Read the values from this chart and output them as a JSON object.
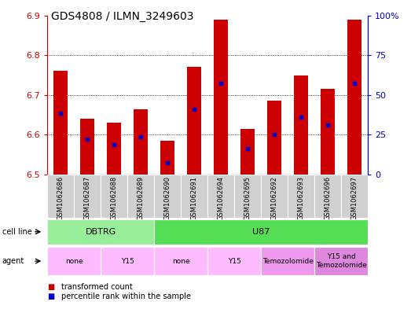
{
  "title": "GDS4808 / ILMN_3249603",
  "samples": [
    "GSM1062686",
    "GSM1062687",
    "GSM1062688",
    "GSM1062689",
    "GSM1062690",
    "GSM1062691",
    "GSM1062694",
    "GSM1062695",
    "GSM1062692",
    "GSM1062693",
    "GSM1062696",
    "GSM1062697"
  ],
  "bar_tops": [
    6.76,
    6.64,
    6.63,
    6.665,
    6.585,
    6.77,
    6.89,
    6.615,
    6.685,
    6.75,
    6.715,
    6.89
  ],
  "blue_positions": [
    6.655,
    6.59,
    6.575,
    6.595,
    6.53,
    6.665,
    6.73,
    6.565,
    6.6,
    6.645,
    6.625,
    6.73
  ],
  "bar_bottom": 6.5,
  "ylim": [
    6.5,
    6.9
  ],
  "yticks": [
    6.5,
    6.6,
    6.7,
    6.8,
    6.9
  ],
  "y2ticks": [
    0,
    25,
    50,
    75,
    100
  ],
  "y2labels": [
    "0",
    "25",
    "50",
    "75",
    "100%"
  ],
  "bar_color": "#cc0000",
  "blue_color": "#0000cc",
  "grid_color": "#000000",
  "background_color": "#ffffff",
  "cell_line_groups": [
    {
      "text": "DBTRG",
      "start": 0,
      "end": 3,
      "color": "#99ee99"
    },
    {
      "text": "U87",
      "start": 4,
      "end": 11,
      "color": "#55dd55"
    }
  ],
  "agent_groups": [
    {
      "text": "none",
      "start": 0,
      "end": 1,
      "color": "#ffbbff"
    },
    {
      "text": "Y15",
      "start": 2,
      "end": 3,
      "color": "#ffbbff"
    },
    {
      "text": "none",
      "start": 4,
      "end": 5,
      "color": "#ffbbff"
    },
    {
      "text": "Y15",
      "start": 6,
      "end": 7,
      "color": "#ffbbff"
    },
    {
      "text": "Temozolomide",
      "start": 8,
      "end": 9,
      "color": "#ee99ee"
    },
    {
      "text": "Y15 and\nTemozolomide",
      "start": 10,
      "end": 11,
      "color": "#dd88dd"
    }
  ],
  "bar_width": 0.55,
  "ylabel_color": "#cc0000",
  "y2label_color": "#0000cc",
  "gray_bg": "#d0d0d0"
}
